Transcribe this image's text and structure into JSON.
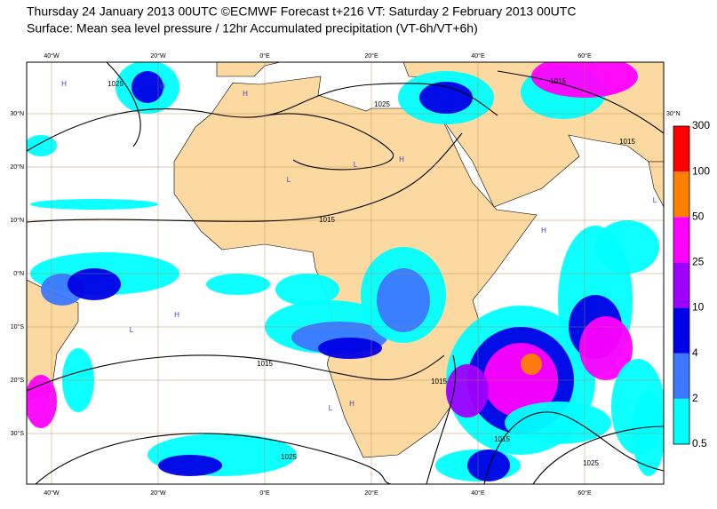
{
  "header": {
    "line1": "Thursday 24 January 2013 00UTC ©ECMWF Forecast t+216 VT: Saturday 2 February 2013 00UTC",
    "line2": "Surface: Mean sea level pressure / 12hr Accumulated precipitation (VT-6h/VT+6h)"
  },
  "map": {
    "lon_labels": [
      "40°W",
      "20°W",
      "0°E",
      "20°E",
      "40°E",
      "60°E"
    ],
    "lat_labels": [
      "30°N",
      "20°N",
      "10°N",
      "0°N",
      "10°S",
      "20°S",
      "30°S"
    ],
    "isobar_labels": [
      "1025",
      "1025",
      "1015",
      "1015",
      "1015",
      "1015",
      "1015",
      "1025",
      "1015",
      "1025"
    ],
    "pressure_centers": [
      "H",
      "H",
      "H",
      "L",
      "H",
      "L",
      "H",
      "L",
      "H",
      "L",
      "H",
      "L"
    ]
  },
  "legend": {
    "ticks": [
      "0.5",
      "2",
      "4",
      "10",
      "25",
      "50",
      "100",
      "300"
    ],
    "colors": [
      "#00ffff",
      "#3c78ff",
      "#0000e6",
      "#a000ff",
      "#ff00ff",
      "#ff8000",
      "#ff0000"
    ]
  }
}
